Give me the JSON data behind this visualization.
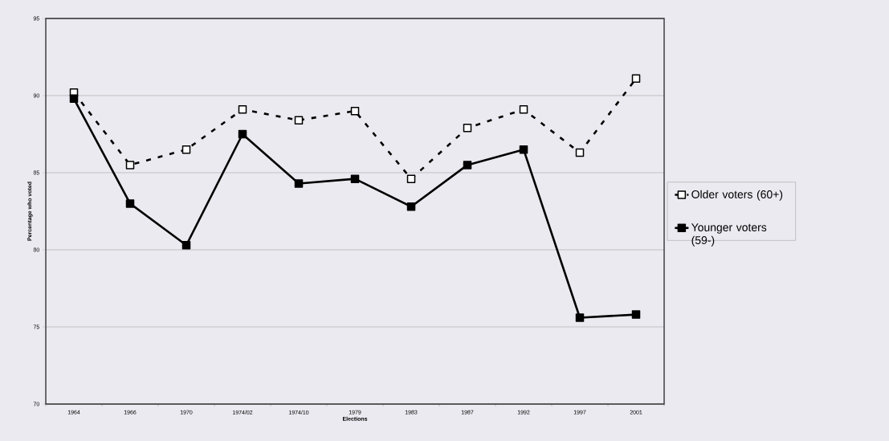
{
  "chart_data": {
    "type": "line",
    "xlabel": "Elections",
    "ylabel": "Percentage who voted",
    "categories": [
      "1964",
      "1966",
      "1970",
      "1974/02",
      "1974/10",
      "1979",
      "1983",
      "1987",
      "1992",
      "1997",
      "2001"
    ],
    "series": [
      {
        "name": "Older voters (60+)",
        "color": "#000000",
        "line_style": "dashed",
        "marker": "square",
        "values": [
          90.2,
          85.5,
          86.5,
          89.1,
          88.4,
          89.0,
          84.6,
          87.9,
          89.1,
          86.3,
          91.1
        ]
      },
      {
        "name": "Younger voters (59-)",
        "color": "#000000",
        "line_style": "solid",
        "marker": "square",
        "values": [
          89.8,
          83.0,
          80.3,
          87.5,
          84.3,
          84.6,
          82.8,
          85.5,
          86.5,
          75.6,
          75.8
        ]
      }
    ],
    "ylim": [
      70,
      95
    ],
    "yticks": [
      70,
      75,
      80,
      85,
      90,
      95
    ],
    "grid": "y",
    "legend": "right"
  }
}
